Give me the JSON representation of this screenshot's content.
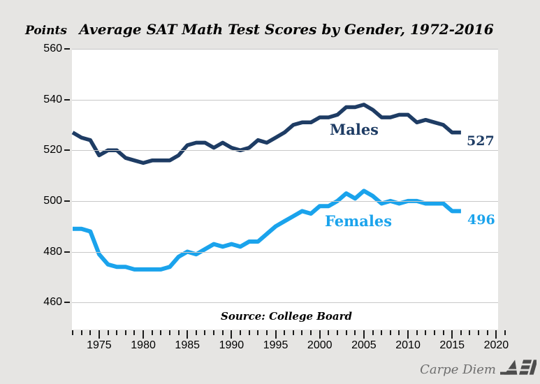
{
  "chart_data": {
    "type": "line",
    "title": "Average SAT Math Test Scores by Gender, 1972-2016",
    "ylabel": "Points",
    "source": "Source: College Board",
    "grid": true,
    "legend_position": "inline-labels",
    "ylim": [
      449,
      560
    ],
    "xlim": [
      1972,
      2021
    ],
    "yticks": [
      460,
      480,
      500,
      520,
      540,
      560
    ],
    "xticks_major": [
      1975,
      1980,
      1985,
      1990,
      1995,
      2000,
      2005,
      2010,
      2015,
      2020
    ],
    "x": [
      1972,
      1973,
      1974,
      1975,
      1976,
      1977,
      1978,
      1979,
      1980,
      1981,
      1982,
      1983,
      1984,
      1985,
      1986,
      1987,
      1988,
      1989,
      1990,
      1991,
      1992,
      1993,
      1994,
      1995,
      1996,
      1997,
      1998,
      1999,
      2000,
      2001,
      2002,
      2003,
      2004,
      2005,
      2006,
      2007,
      2008,
      2009,
      2010,
      2011,
      2012,
      2013,
      2014,
      2015,
      2016
    ],
    "series": [
      {
        "name": "Males",
        "color": "#1e3c64",
        "end_label": "527",
        "values": [
          527,
          525,
          524,
          518,
          520,
          520,
          517,
          516,
          515,
          516,
          516,
          516,
          518,
          522,
          523,
          523,
          521,
          523,
          521,
          520,
          521,
          524,
          523,
          525,
          527,
          530,
          531,
          531,
          533,
          533,
          534,
          537,
          537,
          538,
          536,
          533,
          533,
          534,
          534,
          531,
          532,
          531,
          530,
          527,
          527
        ]
      },
      {
        "name": "Females",
        "color": "#1aa3ec",
        "end_label": "496",
        "values": [
          489,
          489,
          488,
          479,
          475,
          474,
          474,
          473,
          473,
          473,
          473,
          474,
          478,
          480,
          479,
          481,
          483,
          482,
          483,
          482,
          484,
          484,
          487,
          490,
          492,
          494,
          496,
          495,
          498,
          498,
          500,
          503,
          501,
          504,
          502,
          499,
          500,
          499,
          500,
          500,
          499,
          499,
          499,
          496,
          496
        ]
      }
    ]
  },
  "colors": {
    "background": "#e6e5e3",
    "plot_background": "#ffffff",
    "gridline": "#c8c8c8",
    "males": "#1e3c64",
    "females": "#1aa3ec",
    "credit_gray": "#6e6e6e",
    "logo_gray": "#4d4d4d"
  },
  "footer": {
    "credit": "Carpe Diem",
    "logo": "AEI"
  }
}
